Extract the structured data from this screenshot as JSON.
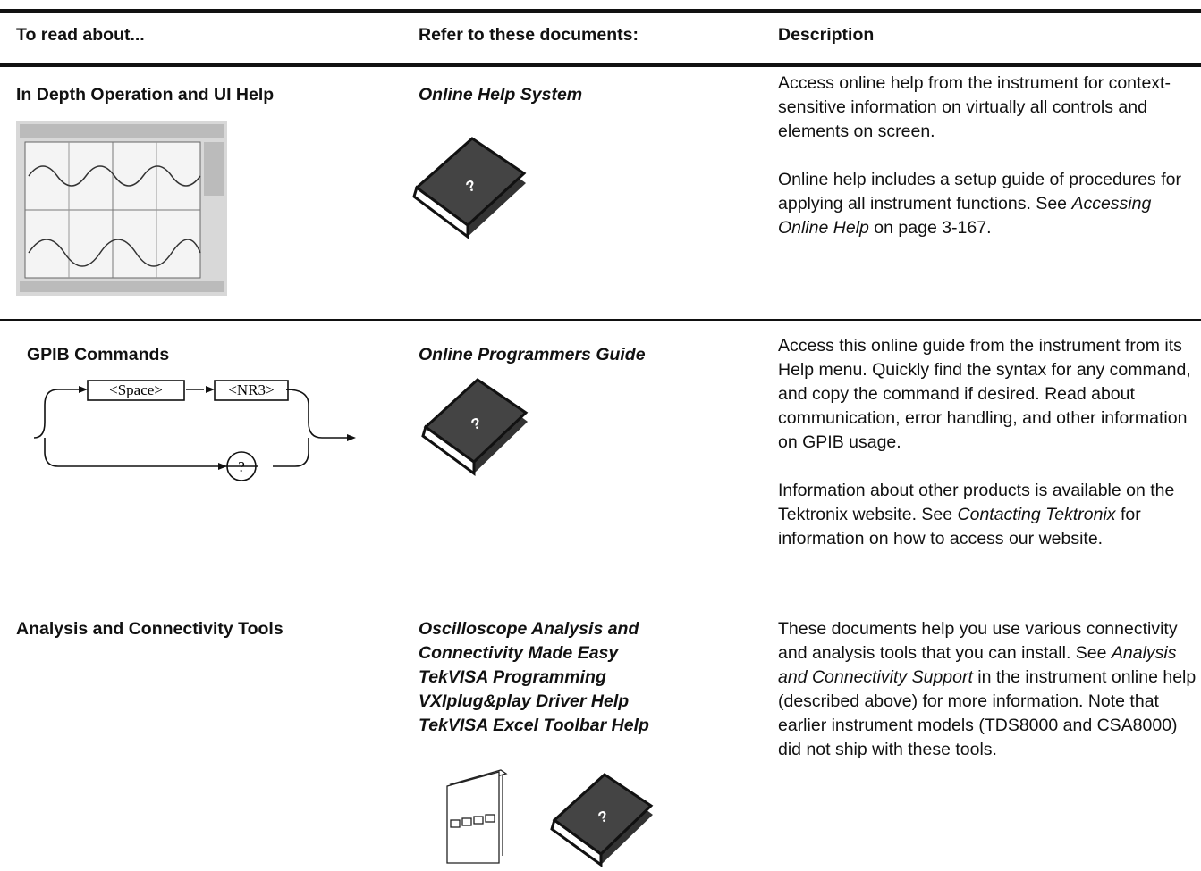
{
  "table": {
    "headers": [
      "To read about...",
      "Refer to these documents:",
      "Description"
    ],
    "rows": [
      {
        "topic": "In Depth Operation and UI Help",
        "documents": [
          "Online Help System"
        ],
        "description": [
          [
            {
              "text": "Access online help from the instrument for context-sensitive information on virtually all controls and elements on screen."
            }
          ],
          [
            {
              "text": "Online help includes a setup guide of procedures for applying all instrument functions. See "
            },
            {
              "text": "Accessing Online Help",
              "style": "italic"
            },
            {
              "text": " on page 3-167."
            }
          ]
        ]
      },
      {
        "topic": "GPIB Commands",
        "syntax": [
          "<Space>",
          "<NR3>",
          "?"
        ],
        "documents": [
          "Online Programmers Guide"
        ],
        "description": [
          [
            {
              "text": "Access this online guide from the instrument from its Help menu. Quickly find the syntax for any command, and copy the command if desired. Read about communication, error handling, and other information on GPIB usage."
            }
          ],
          [
            {
              "text": "Information about other products is available on the Tektronix website. See "
            },
            {
              "text": "Contacting Tektronix",
              "style": "italic"
            },
            {
              "text": " for information on how to access our website."
            }
          ]
        ]
      },
      {
        "topic": "Analysis and Connectivity Tools",
        "documents": [
          "Oscilloscope Analysis and Connectivity Made Easy",
          "TekVISA Programming",
          "VXIplug&play Driver Help",
          "TekVISA Excel Toolbar Help"
        ],
        "description": [
          [
            {
              "text": "These documents help you use various connectivity and analysis tools that you can install. See "
            },
            {
              "text": "Analysis and Connectivity Support",
              "style": "italic"
            },
            {
              "text": " in the instrument online help (described above) for more information. Note that earlier instrument models (TDS8000 and CSA8000) did not ship with these tools."
            }
          ]
        ]
      }
    ]
  }
}
